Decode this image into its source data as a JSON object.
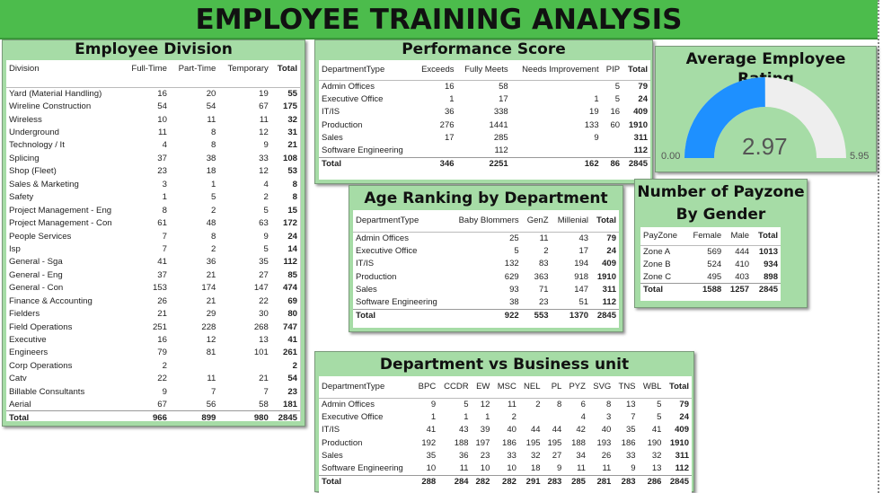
{
  "header": {
    "title": "EMPLOYEE TRAINING ANALYSIS"
  },
  "division": {
    "title": "Employee Division",
    "columns": [
      "Division",
      "Full-Time",
      "Part-Time",
      "Temporary",
      "Total"
    ],
    "rows": [
      [
        "Yard (Material Handling)",
        "16",
        "20",
        "19",
        "55"
      ],
      [
        "Wireline Construction",
        "54",
        "54",
        "67",
        "175"
      ],
      [
        "Wireless",
        "10",
        "11",
        "11",
        "32"
      ],
      [
        "Underground",
        "11",
        "8",
        "12",
        "31"
      ],
      [
        "Technology / It",
        "4",
        "8",
        "9",
        "21"
      ],
      [
        "Splicing",
        "37",
        "38",
        "33",
        "108"
      ],
      [
        "Shop (Fleet)",
        "23",
        "18",
        "12",
        "53"
      ],
      [
        "Sales & Marketing",
        "3",
        "1",
        "4",
        "8"
      ],
      [
        "Safety",
        "1",
        "5",
        "2",
        "8"
      ],
      [
        "Project Management - Eng",
        "8",
        "2",
        "5",
        "15"
      ],
      [
        "Project Management - Con",
        "61",
        "48",
        "63",
        "172"
      ],
      [
        "People Services",
        "7",
        "8",
        "9",
        "24"
      ],
      [
        "Isp",
        "7",
        "2",
        "5",
        "14"
      ],
      [
        "General - Sga",
        "41",
        "36",
        "35",
        "112"
      ],
      [
        "General - Eng",
        "37",
        "21",
        "27",
        "85"
      ],
      [
        "General - Con",
        "153",
        "174",
        "147",
        "474"
      ],
      [
        "Finance & Accounting",
        "26",
        "21",
        "22",
        "69"
      ],
      [
        "Fielders",
        "21",
        "29",
        "30",
        "80"
      ],
      [
        "Field Operations",
        "251",
        "228",
        "268",
        "747"
      ],
      [
        "Executive",
        "16",
        "12",
        "13",
        "41"
      ],
      [
        "Engineers",
        "79",
        "81",
        "101",
        "261"
      ],
      [
        "Corp Operations",
        "2",
        "",
        "",
        "2"
      ],
      [
        "Catv",
        "22",
        "11",
        "21",
        "54"
      ],
      [
        "Billable Consultants",
        "9",
        "7",
        "7",
        "23"
      ],
      [
        "Aerial",
        "67",
        "56",
        "58",
        "181"
      ]
    ],
    "total": [
      "Total",
      "966",
      "899",
      "980",
      "2845"
    ]
  },
  "performance": {
    "title": "Performance Score",
    "columns": [
      "DepartmentType",
      "Exceeds",
      "Fully Meets",
      "Needs Improvement",
      "PIP",
      "Total"
    ],
    "rows": [
      [
        "Admin Offices",
        "16",
        "58",
        "",
        "5",
        "79"
      ],
      [
        "Executive Office",
        "1",
        "17",
        "1",
        "5",
        "24"
      ],
      [
        "IT/IS",
        "36",
        "338",
        "19",
        "16",
        "409"
      ],
      [
        "Production",
        "276",
        "1441",
        "133",
        "60",
        "1910"
      ],
      [
        "Sales",
        "17",
        "285",
        "9",
        "",
        "311"
      ],
      [
        "Software Engineering",
        "",
        "112",
        "",
        "",
        "112"
      ]
    ],
    "total": [
      "Total",
      "346",
      "2251",
      "162",
      "86",
      "2845"
    ]
  },
  "rating": {
    "title": "Average Employee Rating",
    "value": "2.97",
    "min": "0.00",
    "max": "5.95",
    "fill_fraction": 0.499,
    "fill_color": "#1e90ff",
    "track_color": "#eeeeee"
  },
  "age": {
    "title": "Age Ranking by Department",
    "columns": [
      "DepartmentType",
      "Baby Blommers",
      "GenZ",
      "Millenial",
      "Total"
    ],
    "rows": [
      [
        "Admin Offices",
        "25",
        "11",
        "43",
        "79"
      ],
      [
        "Executive Office",
        "5",
        "2",
        "17",
        "24"
      ],
      [
        "IT/IS",
        "132",
        "83",
        "194",
        "409"
      ],
      [
        "Production",
        "629",
        "363",
        "918",
        "1910"
      ],
      [
        "Sales",
        "93",
        "71",
        "147",
        "311"
      ],
      [
        "Software Engineering",
        "38",
        "23",
        "51",
        "112"
      ]
    ],
    "total": [
      "Total",
      "922",
      "553",
      "1370",
      "2845"
    ]
  },
  "payzone": {
    "title_line1": "Number of Payzone",
    "title_line2": "By Gender",
    "columns": [
      "PayZone",
      "Female",
      "Male",
      "Total"
    ],
    "rows": [
      [
        "Zone A",
        "569",
        "444",
        "1013"
      ],
      [
        "Zone B",
        "524",
        "410",
        "934"
      ],
      [
        "Zone C",
        "495",
        "403",
        "898"
      ]
    ],
    "total": [
      "Total",
      "1588",
      "1257",
      "2845"
    ]
  },
  "business": {
    "title": "Department vs Business unit",
    "columns": [
      "DepartmentType",
      "BPC",
      "CCDR",
      "EW",
      "MSC",
      "NEL",
      "PL",
      "PYZ",
      "SVG",
      "TNS",
      "WBL",
      "Total"
    ],
    "rows": [
      [
        "Admin Offices",
        "9",
        "5",
        "12",
        "11",
        "2",
        "8",
        "6",
        "8",
        "13",
        "5",
        "79"
      ],
      [
        "Executive Office",
        "1",
        "1",
        "1",
        "2",
        "",
        "",
        "4",
        "3",
        "7",
        "5",
        "24"
      ],
      [
        "IT/IS",
        "41",
        "43",
        "39",
        "40",
        "44",
        "44",
        "42",
        "40",
        "35",
        "41",
        "409"
      ],
      [
        "Production",
        "192",
        "188",
        "197",
        "186",
        "195",
        "195",
        "188",
        "193",
        "186",
        "190",
        "1910"
      ],
      [
        "Sales",
        "35",
        "36",
        "23",
        "33",
        "32",
        "27",
        "34",
        "26",
        "33",
        "32",
        "311"
      ],
      [
        "Software Engineering",
        "10",
        "11",
        "10",
        "10",
        "18",
        "9",
        "11",
        "11",
        "9",
        "13",
        "112"
      ]
    ],
    "total": [
      "Total",
      "288",
      "284",
      "282",
      "282",
      "291",
      "283",
      "285",
      "281",
      "283",
      "286",
      "2845"
    ]
  }
}
